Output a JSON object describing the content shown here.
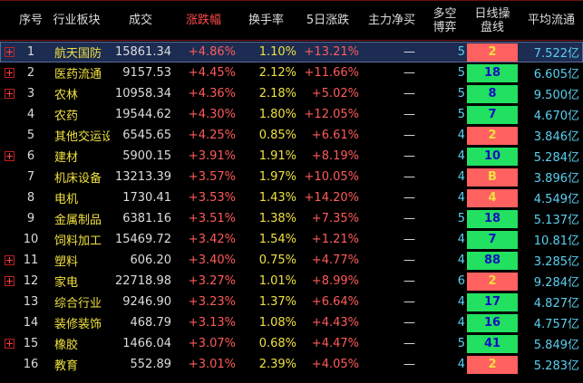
{
  "header": {
    "idx": "序号",
    "name": "行业板块",
    "volume": "成交",
    "change": "涨跌幅",
    "turnover": "换手率",
    "change5d": "5日涨跌",
    "netflow": "主力净买",
    "longshort_l1": "多空",
    "longshort_l2": "博弈",
    "daily_l1": "日线操",
    "daily_l2": "盘线",
    "avgflow": "平均流通"
  },
  "colors": {
    "header_red": "#ff4a4a",
    "name_yellow": "#f0e040",
    "up_red": "#ff5a5a",
    "cyan": "#5ad0f0",
    "badge_green": "#22e060",
    "badge_red": "#ff6060",
    "selected_row": "#1c2c52"
  },
  "rows": [
    {
      "expand": true,
      "idx": "1",
      "name": "航天国防",
      "volume": "15861.34",
      "change": "+4.86%",
      "turnover": "1.10%",
      "change5d": "+13.21%",
      "netflow": "—",
      "longshort": "5",
      "daily": "2",
      "daily_color": "red",
      "avgflow": "7.522亿",
      "selected": true
    },
    {
      "expand": true,
      "idx": "2",
      "name": "医药流通",
      "volume": "9157.53",
      "change": "+4.45%",
      "turnover": "2.12%",
      "change5d": "+11.66%",
      "netflow": "—",
      "longshort": "5",
      "daily": "18",
      "daily_color": "green",
      "avgflow": "6.605亿"
    },
    {
      "expand": true,
      "idx": "3",
      "name": "农林",
      "volume": "10958.34",
      "change": "+4.36%",
      "turnover": "2.18%",
      "change5d": "+5.02%",
      "netflow": "—",
      "longshort": "5",
      "daily": "8",
      "daily_color": "green",
      "avgflow": "9.500亿"
    },
    {
      "expand": false,
      "idx": "4",
      "name": "农药",
      "volume": "19544.62",
      "change": "+4.30%",
      "turnover": "1.80%",
      "change5d": "+12.05%",
      "netflow": "—",
      "longshort": "5",
      "daily": "7",
      "daily_color": "green",
      "avgflow": "4.670亿"
    },
    {
      "expand": false,
      "idx": "5",
      "name": "其他交运设",
      "volume": "6545.65",
      "change": "+4.25%",
      "turnover": "0.85%",
      "change5d": "+6.61%",
      "netflow": "—",
      "longshort": "4",
      "daily": "2",
      "daily_color": "red",
      "avgflow": "3.846亿"
    },
    {
      "expand": true,
      "idx": "6",
      "name": "建材",
      "volume": "5900.15",
      "change": "+3.91%",
      "turnover": "1.91%",
      "change5d": "+8.19%",
      "netflow": "—",
      "longshort": "4",
      "daily": "10",
      "daily_color": "green",
      "avgflow": "5.284亿"
    },
    {
      "expand": false,
      "idx": "7",
      "name": "机床设备",
      "volume": "13213.39",
      "change": "+3.57%",
      "turnover": "1.97%",
      "change5d": "+10.05%",
      "netflow": "—",
      "longshort": "4",
      "daily": "B",
      "daily_color": "red",
      "avgflow": "3.896亿"
    },
    {
      "expand": false,
      "idx": "8",
      "name": "电机",
      "volume": "1730.41",
      "change": "+3.53%",
      "turnover": "1.43%",
      "change5d": "+14.20%",
      "netflow": "—",
      "longshort": "4",
      "daily": "4",
      "daily_color": "red",
      "avgflow": "4.549亿"
    },
    {
      "expand": false,
      "idx": "9",
      "name": "金属制品",
      "volume": "6381.16",
      "change": "+3.51%",
      "turnover": "1.38%",
      "change5d": "+7.35%",
      "netflow": "—",
      "longshort": "5",
      "daily": "18",
      "daily_color": "green",
      "avgflow": "5.137亿"
    },
    {
      "expand": false,
      "idx": "10",
      "name": "饲料加工",
      "volume": "15469.72",
      "change": "+3.42%",
      "turnover": "1.54%",
      "change5d": "+1.21%",
      "netflow": "—",
      "longshort": "4",
      "daily": "7",
      "daily_color": "green",
      "avgflow": "10.81亿"
    },
    {
      "expand": true,
      "idx": "11",
      "name": "塑料",
      "volume": "606.20",
      "change": "+3.40%",
      "turnover": "0.75%",
      "change5d": "+4.77%",
      "netflow": "—",
      "longshort": "4",
      "daily": "88",
      "daily_color": "green",
      "avgflow": "3.285亿"
    },
    {
      "expand": true,
      "idx": "12",
      "name": "家电",
      "volume": "22718.98",
      "change": "+3.27%",
      "turnover": "1.01%",
      "change5d": "+8.99%",
      "netflow": "—",
      "longshort": "6",
      "daily": "2",
      "daily_color": "red",
      "avgflow": "9.284亿"
    },
    {
      "expand": false,
      "idx": "13",
      "name": "综合行业",
      "volume": "9246.90",
      "change": "+3.23%",
      "turnover": "1.37%",
      "change5d": "+6.64%",
      "netflow": "—",
      "longshort": "4",
      "daily": "17",
      "daily_color": "green",
      "avgflow": "4.827亿"
    },
    {
      "expand": false,
      "idx": "14",
      "name": "装修装饰",
      "volume": "468.79",
      "change": "+3.13%",
      "turnover": "1.08%",
      "change5d": "+4.43%",
      "netflow": "—",
      "longshort": "4",
      "daily": "16",
      "daily_color": "green",
      "avgflow": "4.757亿"
    },
    {
      "expand": true,
      "idx": "15",
      "name": "橡胶",
      "volume": "1466.04",
      "change": "+3.07%",
      "turnover": "0.68%",
      "change5d": "+4.47%",
      "netflow": "—",
      "longshort": "5",
      "daily": "41",
      "daily_color": "green",
      "avgflow": "5.849亿"
    },
    {
      "expand": false,
      "idx": "16",
      "name": "教育",
      "volume": "552.89",
      "change": "+3.01%",
      "turnover": "2.39%",
      "change5d": "+4.05%",
      "netflow": "—",
      "longshort": "4",
      "daily": "2",
      "daily_color": "red",
      "avgflow": "5.283亿"
    }
  ]
}
